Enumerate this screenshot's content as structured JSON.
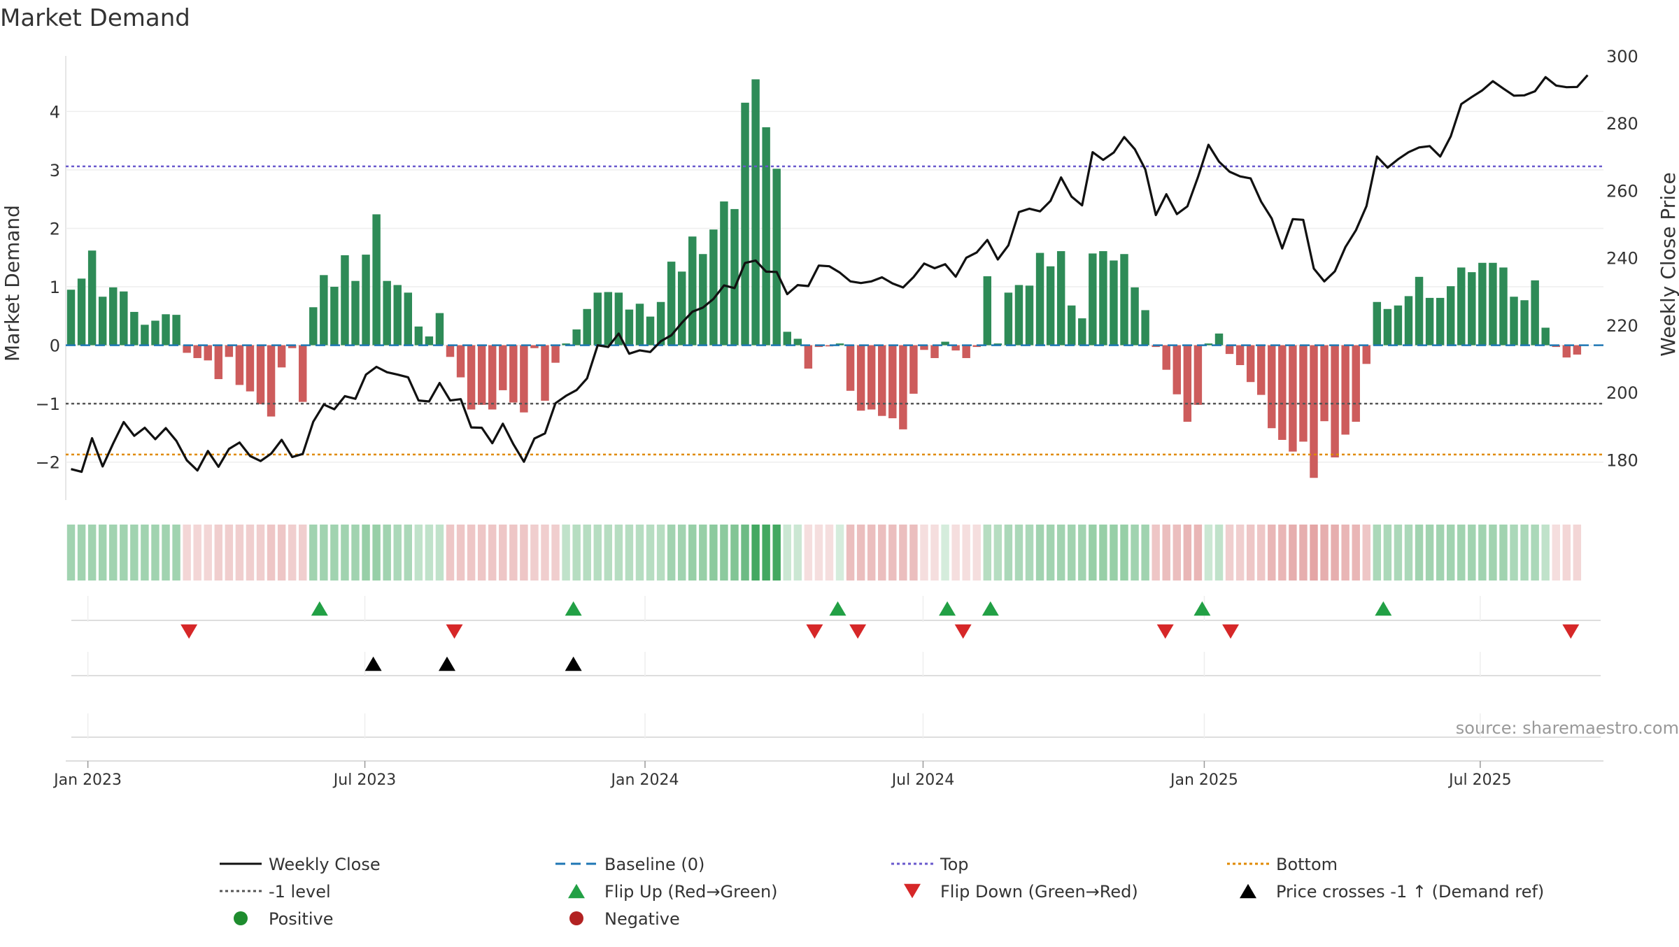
{
  "chart_data": {
    "type": "bar",
    "title": "Market Demand",
    "ylabel": "Market Demand",
    "y2label": "Weekly Close Price",
    "ylim": [
      -2.65,
      4.95
    ],
    "y2lim": [
      168,
      300
    ],
    "yticks": [
      4,
      3,
      2,
      1,
      0,
      -1,
      -2
    ],
    "ytick_labels": [
      "4",
      "3",
      "2",
      "1",
      "0",
      "−1",
      "−2"
    ],
    "y2ticks": [
      300,
      280,
      260,
      240,
      220,
      200,
      180
    ],
    "y2tick_labels": [
      "300",
      "280",
      "260",
      "240",
      "220",
      "200",
      "180"
    ],
    "x_start_label": "Jan 2023",
    "weeks": 146,
    "xticks": [
      {
        "week": 1.6,
        "label": "Jan 2023"
      },
      {
        "week": 27.9,
        "label": "Jul 2023"
      },
      {
        "week": 54.5,
        "label": "Jan 2024"
      },
      {
        "week": 80.9,
        "label": "Jul 2024"
      },
      {
        "week": 107.6,
        "label": "Jan 2025"
      },
      {
        "week": 133.8,
        "label": "Jul 2025"
      }
    ],
    "reference_lines": {
      "baseline": 0,
      "top": 3.06,
      "bottom": -1.87,
      "minus_one": -1
    },
    "demand": [
      0.95,
      1.14,
      1.62,
      0.83,
      0.99,
      0.92,
      0.57,
      0.35,
      0.42,
      0.53,
      0.52,
      -0.13,
      -0.22,
      -0.26,
      -0.58,
      -0.2,
      -0.68,
      -0.79,
      -1.01,
      -1.22,
      -0.38,
      -0.05,
      -0.97,
      0.65,
      1.2,
      1.0,
      1.54,
      1.1,
      1.55,
      2.24,
      1.1,
      1.03,
      0.9,
      0.32,
      0.15,
      0.55,
      -0.2,
      -0.55,
      -1.1,
      -1.02,
      -1.1,
      -0.77,
      -0.98,
      -1.15,
      -0.05,
      -0.95,
      -0.3,
      0.03,
      0.27,
      0.62,
      0.9,
      0.91,
      0.9,
      0.61,
      0.71,
      0.49,
      0.74,
      1.43,
      1.26,
      1.86,
      1.56,
      1.98,
      2.46,
      2.33,
      4.15,
      4.55,
      3.73,
      3.02,
      0.23,
      0.11,
      -0.4,
      -0.03,
      -0.02,
      0.03,
      -0.78,
      -1.12,
      -1.1,
      -1.21,
      -1.25,
      -1.44,
      -0.83,
      -0.08,
      -0.22,
      0.06,
      -0.09,
      -0.22,
      -0.03,
      1.18,
      0.03,
      0.9,
      1.03,
      1.02,
      1.58,
      1.35,
      1.61,
      0.68,
      0.46,
      1.57,
      1.61,
      1.45,
      1.56,
      0.99,
      0.6,
      -0.03,
      -0.42,
      -0.84,
      -1.31,
      -1.02,
      0.03,
      0.2,
      -0.15,
      -0.34,
      -0.63,
      -0.85,
      -1.42,
      -1.62,
      -1.82,
      -1.65,
      -2.27,
      -1.3,
      -1.92,
      -1.53,
      -1.31,
      -0.32,
      0.74,
      0.62,
      0.68,
      0.84,
      1.17,
      0.81,
      0.81,
      1.01,
      1.33,
      1.25,
      1.41,
      1.41,
      1.33,
      0.83,
      0.77,
      1.11,
      0.3,
      -0.03,
      -0.21,
      -0.16
    ],
    "close": [
      177.2,
      176.4,
      186.4,
      178.0,
      184.8,
      191.2,
      187.1,
      189.5,
      186.1,
      189.4,
      185.6,
      179.8,
      176.8,
      182.6,
      177.9,
      183.2,
      185.1,
      181.1,
      179.6,
      181.8,
      185.9,
      180.8,
      181.7,
      191.3,
      196.4,
      195.0,
      198.9,
      198.1,
      205.3,
      207.6,
      206.0,
      205.3,
      204.5,
      197.6,
      197.3,
      202.8,
      197.6,
      198.0,
      189.6,
      189.5,
      184.9,
      190.7,
      184.6,
      179.4,
      186.3,
      187.8,
      196.8,
      199.0,
      200.7,
      204.2,
      214.0,
      213.5,
      217.5,
      211.5,
      212.5,
      212.0,
      215.2,
      217.0,
      220.7,
      224.0,
      225.2,
      227.8,
      231.8,
      231.0,
      238.5,
      239.2,
      235.9,
      235.8,
      229.2,
      231.9,
      231.6,
      237.7,
      237.5,
      235.6,
      233.0,
      232.5,
      233.0,
      234.2,
      232.4,
      231.2,
      234.3,
      238.3,
      236.9,
      238.1,
      234.4,
      240.0,
      241.6,
      245.3,
      239.5,
      243.7,
      253.6,
      254.6,
      253.8,
      256.9,
      263.9,
      258.2,
      255.6,
      271.4,
      269.1,
      271.3,
      275.9,
      272.3,
      266.3,
      252.7,
      258.9,
      253.0,
      255.3,
      264.0,
      273.6,
      268.6,
      265.6,
      264.2,
      263.6,
      256.7,
      251.7,
      242.8,
      251.5,
      251.3,
      236.8,
      233.0,
      236.0,
      243.2,
      248.2,
      255.4,
      270.1,
      266.8,
      269.3,
      271.4,
      272.8,
      273.2,
      270.1,
      276.1,
      285.7,
      287.8,
      289.8,
      292.5,
      290.3,
      288.2,
      288.3,
      289.5,
      293.7,
      291.2,
      290.7,
      290.8,
      294.3
    ],
    "heat_intensity": [
      0.45,
      0.45,
      0.45,
      0.45,
      0.45,
      0.45,
      0.45,
      0.45,
      0.45,
      0.45,
      0.45,
      0.25,
      0.25,
      0.25,
      0.3,
      0.3,
      0.3,
      0.3,
      0.3,
      0.35,
      0.35,
      0.3,
      0.3,
      0.45,
      0.45,
      0.45,
      0.45,
      0.45,
      0.5,
      0.5,
      0.45,
      0.4,
      0.4,
      0.3,
      0.3,
      0.3,
      0.35,
      0.35,
      0.35,
      0.35,
      0.35,
      0.35,
      0.35,
      0.35,
      0.3,
      0.3,
      0.3,
      0.3,
      0.35,
      0.35,
      0.35,
      0.35,
      0.35,
      0.35,
      0.35,
      0.35,
      0.35,
      0.45,
      0.45,
      0.5,
      0.5,
      0.55,
      0.55,
      0.6,
      0.7,
      0.9,
      0.9,
      0.9,
      0.25,
      0.25,
      0.2,
      0.2,
      0.2,
      0.2,
      0.4,
      0.4,
      0.4,
      0.4,
      0.4,
      0.4,
      0.4,
      0.2,
      0.2,
      0.2,
      0.2,
      0.2,
      0.2,
      0.35,
      0.35,
      0.4,
      0.4,
      0.4,
      0.45,
      0.45,
      0.45,
      0.45,
      0.45,
      0.5,
      0.5,
      0.5,
      0.5,
      0.45,
      0.45,
      0.35,
      0.4,
      0.4,
      0.45,
      0.45,
      0.25,
      0.3,
      0.3,
      0.3,
      0.35,
      0.35,
      0.45,
      0.45,
      0.5,
      0.5,
      0.55,
      0.5,
      0.5,
      0.45,
      0.45,
      0.35,
      0.4,
      0.4,
      0.4,
      0.4,
      0.45,
      0.45,
      0.45,
      0.45,
      0.45,
      0.45,
      0.45,
      0.45,
      0.45,
      0.4,
      0.4,
      0.4,
      0.3,
      0.2,
      0.25,
      0.25
    ],
    "flip_up_weeks": [
      23.6,
      47.7,
      72.8,
      83.2,
      87.3,
      107.4,
      124.6
    ],
    "flip_down_weeks": [
      11.2,
      36.4,
      70.6,
      74.7,
      84.7,
      103.9,
      110.1,
      142.4
    ],
    "price_cross_weeks": [
      28.7,
      35.7,
      47.7
    ],
    "colors": {
      "positive_bar": "#2e8b57",
      "negative_bar": "#cd5c5c",
      "close_line": "#111111",
      "baseline": "#1f77b4",
      "top": "#6a5acd",
      "bottom": "#e08a00",
      "minus_one": "#555555",
      "flip_up": "#22a045",
      "flip_down": "#d62728",
      "price_cross": "#000000",
      "heat_positive": "#2e9e4f",
      "heat_negative": "#cd5c5c"
    },
    "source": "source: sharemaestro.com",
    "legend": [
      {
        "label": "Weekly Close",
        "icon": "solid-line"
      },
      {
        "label": "Baseline (0)",
        "icon": "dashed-line"
      },
      {
        "label": "Top",
        "icon": "dotted-line"
      },
      {
        "label": "Bottom",
        "icon": "dotted-line"
      },
      {
        "label": "-1 level",
        "icon": "dotted-line"
      },
      {
        "label": "Flip Up (Red→Green)",
        "icon": "triangle-up"
      },
      {
        "label": "Flip Down (Green→Red)",
        "icon": "triangle-down"
      },
      {
        "label": "Price crosses -1 ↑ (Demand ref)",
        "icon": "triangle-up"
      },
      {
        "label": "Positive",
        "icon": "circle"
      },
      {
        "label": "Negative",
        "icon": "circle"
      }
    ]
  }
}
